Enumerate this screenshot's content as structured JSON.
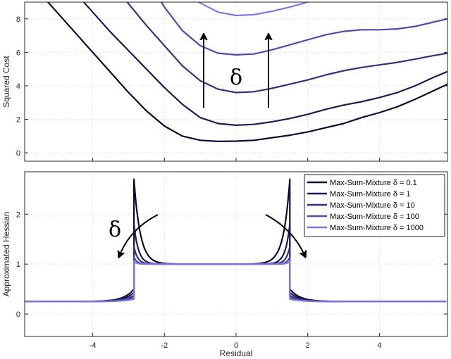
{
  "chart_data": [
    {
      "type": "line",
      "title": "",
      "xlabel": "",
      "ylabel": "Squared Cost",
      "xlim": [
        -5.9,
        5.9
      ],
      "ylim": [
        -0.5,
        9
      ],
      "y_ticks": [
        "0",
        "2",
        "4",
        "6",
        "8"
      ],
      "grid": true,
      "annotation": "δ",
      "series": [
        {
          "color": "#0d0b30",
          "x": [
            -5.5,
            -5,
            -4.5,
            -4,
            -3.5,
            -3,
            -2.5,
            -2,
            -1.5,
            -1,
            -0.5,
            0,
            0.5,
            1,
            1.5,
            2,
            2.5,
            3,
            3.5,
            4,
            4.5,
            5,
            5.5,
            5.9
          ],
          "y": [
            9.6,
            8.4,
            7.2,
            6.0,
            4.8,
            3.6,
            2.5,
            1.6,
            1.0,
            0.75,
            0.68,
            0.7,
            0.75,
            0.9,
            1.05,
            1.25,
            1.5,
            1.75,
            2.1,
            2.4,
            2.75,
            3.2,
            3.7,
            4.1
          ]
        },
        {
          "color": "#1e1b52",
          "x": [
            -4.5,
            -4,
            -3.5,
            -3,
            -2.5,
            -2,
            -1.5,
            -1,
            -0.5,
            0,
            0.5,
            1,
            1.5,
            2,
            2.5,
            3,
            3.5,
            4,
            4.5,
            5,
            5.5,
            5.9
          ],
          "y": [
            9.6,
            8.4,
            7.2,
            6.1,
            5.0,
            3.9,
            2.9,
            2.1,
            1.75,
            1.65,
            1.7,
            1.85,
            2.05,
            2.3,
            2.6,
            2.85,
            3.05,
            3.3,
            3.6,
            4.0,
            4.5,
            4.85
          ]
        },
        {
          "color": "#343178",
          "x": [
            -3.2,
            -3,
            -2.5,
            -2,
            -1.5,
            -1,
            -0.5,
            0,
            0.5,
            1,
            1.5,
            2,
            2.5,
            3,
            3.5,
            4,
            4.5,
            5,
            5.5,
            5.9
          ],
          "y": [
            9.5,
            8.9,
            7.6,
            6.4,
            5.2,
            4.3,
            3.8,
            3.6,
            3.65,
            3.85,
            4.1,
            4.35,
            4.65,
            4.9,
            5.1,
            5.25,
            5.4,
            5.6,
            5.8,
            5.95
          ]
        },
        {
          "color": "#4f4ca6",
          "x": [
            -2.2,
            -2,
            -1.5,
            -1,
            -0.5,
            0,
            0.5,
            1,
            1.5,
            2,
            2.5,
            3,
            3.5,
            4,
            4.5,
            5,
            5.5,
            5.9
          ],
          "y": [
            9.4,
            8.7,
            7.3,
            6.4,
            5.95,
            5.85,
            5.9,
            6.15,
            6.45,
            6.75,
            7.05,
            7.25,
            7.35,
            7.35,
            7.4,
            7.55,
            7.8,
            8.0
          ]
        },
        {
          "color": "#7b78e0",
          "x": [
            -1.3,
            -1,
            -0.5,
            0,
            0.5,
            1,
            1.5,
            2,
            2.5,
            3
          ],
          "y": [
            9.3,
            8.95,
            8.4,
            8.2,
            8.25,
            8.45,
            8.7,
            9.0,
            9.3,
            9.6
          ]
        }
      ]
    },
    {
      "type": "line",
      "title": "",
      "xlabel": "Residual",
      "ylabel": "Approximated Hessian",
      "xlim": [
        -5.9,
        5.9
      ],
      "ylim": [
        -0.45,
        2.85
      ],
      "x_ticks": [
        "-4",
        "-2",
        "0",
        "2",
        "4"
      ],
      "y_ticks": [
        "0",
        "1",
        "2"
      ],
      "grid": true,
      "annotation": "δ",
      "legend": {
        "position": "top-right",
        "entries": [
          "Max-Sum-Mixture δ = 0.1",
          "Max-Sum-Mixture δ = 1",
          "Max-Sum-Mixture δ = 10",
          "Max-Sum-Mixture δ = 100",
          "Max-Sum-Mixture δ = 1000"
        ]
      },
      "series": [
        {
          "name": "Max-Sum-Mixture δ = 0.1",
          "color": "#0d0b30",
          "boundary": [
            -2.85,
            1.5
          ],
          "peak": 2.7,
          "floor": 0.25,
          "outer_bump": 0.25,
          "inner_scale": 0.5
        },
        {
          "name": "Max-Sum-Mixture δ = 1",
          "color": "#1e1b52",
          "boundary": [
            -2.85,
            1.5
          ],
          "peak": 1.8,
          "floor": 0.25,
          "outer_bump": 0.18,
          "inner_scale": 0.3
        },
        {
          "name": "Max-Sum-Mixture δ = 10",
          "color": "#343178",
          "boundary": [
            -2.85,
            1.5
          ],
          "peak": 1.35,
          "floor": 0.25,
          "outer_bump": 0.12,
          "inner_scale": 0.22
        },
        {
          "name": "Max-Sum-Mixture δ = 100",
          "color": "#4f4ca6",
          "boundary": [
            -2.85,
            1.5
          ],
          "peak": 1.14,
          "floor": 0.25,
          "outer_bump": 0.08,
          "inner_scale": 0.15
        },
        {
          "name": "Max-Sum-Mixture δ = 1000",
          "color": "#7b78e0",
          "boundary": [
            -2.85,
            1.5
          ],
          "peak": 1.06,
          "floor": 0.25,
          "outer_bump": 0.05,
          "inner_scale": 0.1
        }
      ]
    }
  ]
}
